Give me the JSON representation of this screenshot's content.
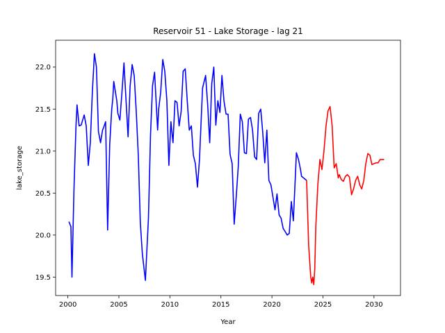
{
  "chart_data": {
    "type": "line",
    "title": "Reservoir 51 - Lake Storage - lag 21",
    "xlabel": "Year",
    "ylabel": "lake_storage",
    "xlim": [
      1998.8,
      2032.6
    ],
    "ylim": [
      19.28,
      22.32
    ],
    "xticks": [
      2000,
      2005,
      2010,
      2015,
      2020,
      2025,
      2030
    ],
    "yticks": [
      19.5,
      20.0,
      20.5,
      21.0,
      21.5,
      22.0
    ],
    "ytick_labels": [
      "19.5",
      "20.0",
      "20.5",
      "21.0",
      "21.5",
      "22.0"
    ],
    "grid": false,
    "series": [
      {
        "color": "#0000ff",
        "x": [
          2000.1,
          2000.3,
          2000.4,
          2000.6,
          2000.8,
          2000.9,
          2001.1,
          2001.3,
          2001.6,
          2001.8,
          2002.0,
          2002.2,
          2002.4,
          2002.6,
          2002.8,
          2003.0,
          2003.2,
          2003.4,
          2003.5,
          2003.7,
          2003.9,
          2004.1,
          2004.3,
          2004.4,
          2004.5,
          2004.8,
          2004.9,
          2005.1,
          2005.3,
          2005.5,
          2005.7,
          2005.9,
          2006.1,
          2006.3,
          2006.5,
          2006.7,
          2006.9,
          2007.1,
          2007.3,
          2007.6,
          2007.9,
          2008.1,
          2008.3,
          2008.5,
          2008.8,
          2008.9,
          2009.1,
          2009.3,
          2009.5,
          2009.7,
          2009.9,
          2010.1,
          2010.3,
          2010.5,
          2010.7,
          2010.9,
          2011.1,
          2011.3,
          2011.5,
          2011.7,
          2011.9,
          2012.1,
          2012.3,
          2012.5,
          2012.7,
          2012.9,
          2013.2,
          2013.5,
          2013.7,
          2013.9,
          2014.1,
          2014.3,
          2014.5,
          2014.7,
          2014.9,
          2015.1,
          2015.3,
          2015.5,
          2015.7,
          2015.9,
          2016.1,
          2016.3,
          2016.5,
          2016.7,
          2016.9,
          2017.1,
          2017.3,
          2017.5,
          2017.7,
          2017.9,
          2018.1,
          2018.3,
          2018.5,
          2018.7,
          2018.9,
          2019.1,
          2019.3,
          2019.5,
          2019.7,
          2019.9,
          2020.1,
          2020.3,
          2020.5,
          2020.7,
          2020.9,
          2021.1,
          2021.3,
          2021.5,
          2021.7,
          2021.9,
          2022.1,
          2022.4,
          2022.6,
          2022.8,
          2022.9,
          2023.1,
          2023.3,
          2023.4
        ],
        "y": [
          20.16,
          20.1,
          19.5,
          20.55,
          21.3,
          21.55,
          21.3,
          21.31,
          21.43,
          21.3,
          20.83,
          21.1,
          21.7,
          22.16,
          22.0,
          21.23,
          21.1,
          21.25,
          21.28,
          21.35,
          20.06,
          21.08,
          21.5,
          21.62,
          21.83,
          21.6,
          21.45,
          21.37,
          21.7,
          22.05,
          21.6,
          21.17,
          21.77,
          22.03,
          21.9,
          21.48,
          20.95,
          20.15,
          19.78,
          19.46,
          20.2,
          21.2,
          21.78,
          21.94,
          21.25,
          21.5,
          21.7,
          22.09,
          21.95,
          21.6,
          20.83,
          21.35,
          21.1,
          21.6,
          21.58,
          21.3,
          21.47,
          21.95,
          21.98,
          21.6,
          21.25,
          21.3,
          20.95,
          20.85,
          20.57,
          20.9,
          21.75,
          21.9,
          21.55,
          21.1,
          21.8,
          22.0,
          21.31,
          21.6,
          21.46,
          21.9,
          21.6,
          21.44,
          21.44,
          20.96,
          20.85,
          20.13,
          20.45,
          20.82,
          21.44,
          21.35,
          20.98,
          20.97,
          21.38,
          21.4,
          21.25,
          20.93,
          20.9,
          21.45,
          21.5,
          21.22,
          20.86,
          21.25,
          20.65,
          20.6,
          20.45,
          20.3,
          20.49,
          20.24,
          20.2,
          20.08,
          20.04,
          20.0,
          20.02,
          20.4,
          20.17,
          20.98,
          20.9,
          20.78,
          20.7,
          20.68,
          20.66,
          20.65
        ],
        "name": ""
      },
      {
        "color": "#ff0000",
        "x": [
          2023.4,
          2023.6,
          2023.8,
          2023.9,
          2024.0,
          2024.1,
          2024.2,
          2024.3,
          2024.5,
          2024.7,
          2024.9,
          2025.1,
          2025.3,
          2025.5,
          2025.7,
          2025.9,
          2026.1,
          2026.3,
          2026.5,
          2026.6,
          2026.8,
          2027.0,
          2027.2,
          2027.4,
          2027.6,
          2027.8,
          2028.0,
          2028.2,
          2028.4,
          2028.6,
          2028.8,
          2029.0,
          2029.2,
          2029.4,
          2029.6,
          2029.8,
          2030.0,
          2030.2,
          2030.4,
          2030.6,
          2030.8,
          2031.0
        ],
        "y": [
          20.65,
          19.88,
          19.5,
          19.43,
          19.5,
          19.41,
          19.6,
          20.1,
          20.6,
          20.9,
          20.78,
          21.0,
          21.3,
          21.48,
          21.53,
          21.3,
          20.8,
          20.85,
          20.68,
          20.72,
          20.66,
          20.64,
          20.7,
          20.72,
          20.69,
          20.48,
          20.55,
          20.65,
          20.7,
          20.6,
          20.55,
          20.65,
          20.85,
          20.97,
          20.95,
          20.84,
          20.85,
          20.86,
          20.86,
          20.9,
          20.9,
          20.9
        ],
        "name": ""
      }
    ]
  }
}
